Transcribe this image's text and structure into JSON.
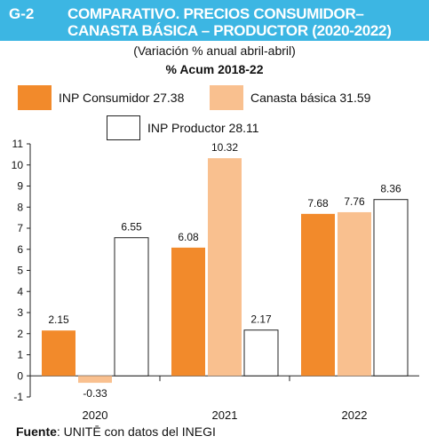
{
  "header": {
    "code": "G-2",
    "title_line1": "COMPARATIVO. PRECIOS CONSUMIDOR–",
    "title_line2": "CANASTA BÁSICA – PRODUCTOR (2020-2022)",
    "subtitle": "(Variación % anual abril-abril)",
    "acum_label": "% Acum 2018-22"
  },
  "colors": {
    "banner": "#3cb6e3",
    "consumidor": "#f28a2b",
    "canasta": "#f9c08f",
    "productor": "#ffffff"
  },
  "chart_data": {
    "type": "bar",
    "categories": [
      "2020",
      "2021",
      "2022"
    ],
    "series": [
      {
        "name": "INP Consumidor 27.38",
        "key": "consumidor",
        "values": [
          2.15,
          6.08,
          7.68
        ]
      },
      {
        "name": "Canasta básica 31.59",
        "key": "canasta",
        "values": [
          -0.33,
          10.32,
          7.76
        ]
      },
      {
        "name": "INP Productor 28.11",
        "key": "productor",
        "values": [
          6.55,
          2.17,
          8.36
        ]
      }
    ],
    "data_labels": [
      [
        "2.15",
        "-0.33",
        "6.55"
      ],
      [
        "6.08",
        "10.32",
        "2.17"
      ],
      [
        "7.68",
        "7.76",
        "8.36"
      ]
    ],
    "yticks": [
      "11",
      "10",
      "9",
      "8",
      "7",
      "6",
      "5",
      "4",
      "3",
      "2",
      "1",
      "0",
      "-1"
    ],
    "ylim": [
      -1,
      11
    ],
    "grid": false,
    "legend_position": "top"
  },
  "source": {
    "label": "Fuente",
    "text": ": UNITĒ con datos del INEGI"
  }
}
